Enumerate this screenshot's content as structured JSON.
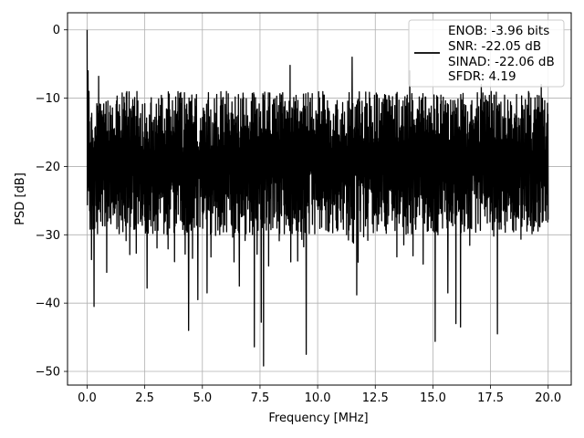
{
  "chart_data": {
    "type": "line",
    "xlabel": "Frequency [MHz]",
    "ylabel": "PSD [dB]",
    "xlim": [
      -0.85,
      21.0
    ],
    "ylim": [
      -52.0,
      2.5
    ],
    "xticks": [
      0.0,
      2.5,
      5.0,
      7.5,
      10.0,
      12.5,
      15.0,
      17.5,
      20.0
    ],
    "xtick_labels": [
      "0.0",
      "2.5",
      "5.0",
      "7.5",
      "10.0",
      "12.5",
      "15.0",
      "17.5",
      "20.0"
    ],
    "yticks": [
      0,
      -10,
      -20,
      -30,
      -40,
      -50
    ],
    "ytick_labels": [
      "0",
      "−10",
      "−20",
      "−30",
      "−40",
      "−50"
    ],
    "grid": true,
    "legend": {
      "placement": "top-right",
      "lines": [
        "ENOB: -3.96 bits",
        "SNR: -22.05 dB",
        "SINAD: -22.06 dB",
        "SFDR: 4.19"
      ]
    },
    "series": [
      {
        "color": "#000000",
        "x_start": 0.0,
        "x_end": 20.0,
        "num_points": 2000,
        "baseline_db": -18,
        "noise_range_db": [
          -28,
          -9
        ],
        "peaks": [
          {
            "x": 0.0,
            "y": 0.0
          },
          {
            "x": 0.04,
            "y": -6.0
          },
          {
            "x": 0.08,
            "y": -9.0
          }
        ],
        "dips": [
          {
            "x": 0.3,
            "y": -40.5
          },
          {
            "x": 0.85,
            "y": -35.5
          },
          {
            "x": 2.6,
            "y": -37.8
          },
          {
            "x": 4.4,
            "y": -44.0
          },
          {
            "x": 4.8,
            "y": -39.5
          },
          {
            "x": 5.2,
            "y": -38.5
          },
          {
            "x": 6.6,
            "y": -37.5
          },
          {
            "x": 7.25,
            "y": -46.4
          },
          {
            "x": 7.65,
            "y": -49.2
          },
          {
            "x": 7.55,
            "y": -42.8
          },
          {
            "x": 9.5,
            "y": -47.5
          },
          {
            "x": 11.7,
            "y": -38.8
          },
          {
            "x": 15.1,
            "y": -45.6
          },
          {
            "x": 15.65,
            "y": -38.5
          },
          {
            "x": 16.0,
            "y": -43.0
          },
          {
            "x": 16.2,
            "y": -43.5
          },
          {
            "x": 17.8,
            "y": -44.5
          }
        ],
        "tall_spikes": [
          {
            "x": 0.5,
            "y": -6.8
          },
          {
            "x": 8.8,
            "y": -5.2
          },
          {
            "x": 11.5,
            "y": -4.0
          },
          {
            "x": 14.0,
            "y": -6.0
          },
          {
            "x": 17.1,
            "y": -8.0
          },
          {
            "x": 19.7,
            "y": -8.0
          }
        ]
      }
    ]
  }
}
